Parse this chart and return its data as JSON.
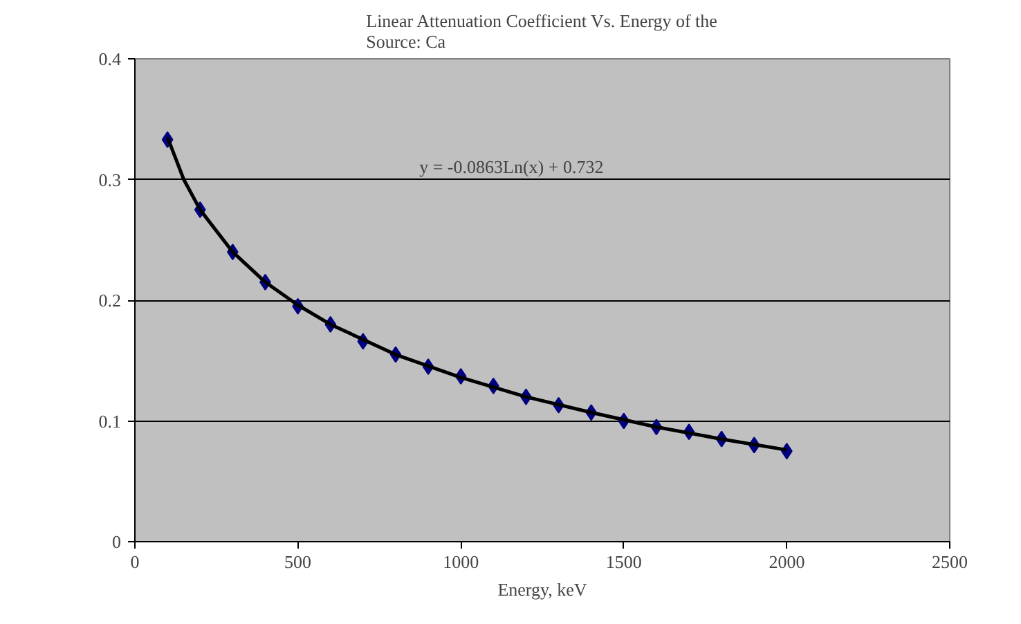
{
  "chart_data": {
    "type": "scatter",
    "title": "Linear Attenuation Coefficient Vs. Energy of the Source: Ca",
    "xlabel": "Energy, keV",
    "x": [
      100,
      200,
      300,
      400,
      500,
      600,
      700,
      800,
      900,
      1000,
      1100,
      1200,
      1300,
      1400,
      1500,
      1600,
      1700,
      1800,
      1900,
      2000
    ],
    "series": [
      {
        "color": "#000080",
        "marker": "diamond",
        "values": [
          0.333,
          0.275,
          0.24,
          0.215,
          0.195,
          0.18,
          0.166,
          0.155,
          0.145,
          0.137,
          0.129,
          0.12,
          0.113,
          0.107,
          0.1,
          0.095,
          0.091,
          0.085,
          0.08,
          0.075
        ]
      },
      {
        "type": "line",
        "color": "#000000",
        "marker": "none",
        "x": [
          100,
          150,
          200,
          300,
          400,
          500,
          600,
          800,
          1000,
          1200,
          1400,
          1600,
          1800,
          2000
        ],
        "values": [
          0.335,
          0.3,
          0.275,
          0.24,
          0.215,
          0.196,
          0.18,
          0.155,
          0.136,
          0.12,
          0.107,
          0.095,
          0.085,
          0.076
        ]
      }
    ],
    "xlim": [
      0,
      2500
    ],
    "ylim": [
      0,
      0.4
    ],
    "xticks": [
      0,
      500,
      1000,
      1500,
      2000,
      2500
    ],
    "yticks": [
      0,
      0.1,
      0.2,
      0.3,
      0.4
    ],
    "grid": "y",
    "annotations": [
      "y = -0.0863Ln(x) + 0.732"
    ]
  }
}
